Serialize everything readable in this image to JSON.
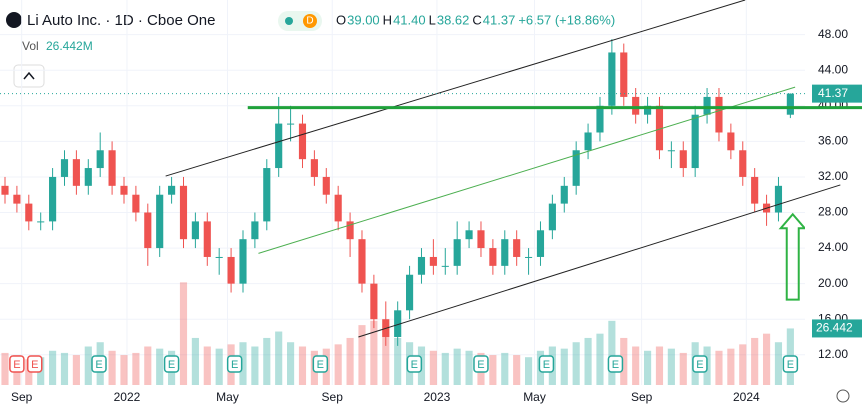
{
  "header": {
    "title": "Li Auto Inc. · 1D · Cboe One",
    "badge": "D",
    "ohlc": [
      {
        "key": "O",
        "value": "39.00"
      },
      {
        "key": "H",
        "value": "41.40"
      },
      {
        "key": "L",
        "value": "38.62"
      },
      {
        "key": "C",
        "value": "41.37"
      }
    ],
    "change": "+6.57 (+18.86%)",
    "vol_label": "Vol",
    "vol_value": "26.442M"
  },
  "chart_data": {
    "type": "candlestick",
    "up_color": "#26a69a",
    "down_color": "#ef5350",
    "xlim": [
      -0.42,
      67.23
    ],
    "ylim": [
      8.6,
      51.9
    ],
    "y2lim": [
      0,
      180
    ],
    "xticks": [
      {
        "value": 1.4,
        "label": "Sep"
      },
      {
        "value": 10.25,
        "label": "2022"
      },
      {
        "value": 18.7,
        "label": "May"
      },
      {
        "value": 27.5,
        "label": "Sep"
      },
      {
        "value": 36.3,
        "label": "2023"
      },
      {
        "value": 44.5,
        "label": "May"
      },
      {
        "value": 53.5,
        "label": "Sep"
      },
      {
        "value": 62.3,
        "label": "2024"
      }
    ],
    "yticks": [
      {
        "value": 12,
        "label": "12.00"
      },
      {
        "value": 16,
        "label": "16.00"
      },
      {
        "value": 20,
        "label": "20.00"
      },
      {
        "value": 24,
        "label": "24.00"
      },
      {
        "value": 28,
        "label": "28.00"
      },
      {
        "value": 32,
        "label": "32.00"
      },
      {
        "value": 36,
        "label": "36.00"
      },
      {
        "value": 40,
        "label": "40.00"
      },
      {
        "value": 44,
        "label": "44.00"
      },
      {
        "value": 48,
        "label": "48.00"
      }
    ],
    "open": [
      31,
      30,
      29,
      27,
      27,
      32,
      34,
      31,
      33,
      35,
      31,
      30,
      28,
      24,
      30,
      31,
      25,
      27,
      23,
      23,
      20,
      25,
      27,
      33,
      38,
      38,
      34,
      32,
      30,
      27,
      25,
      20,
      16,
      14,
      17,
      21,
      23,
      22,
      22,
      25,
      26,
      24,
      22,
      25,
      23,
      23,
      26,
      29,
      31,
      35,
      37,
      40,
      46,
      41,
      39,
      40,
      35,
      35,
      33,
      39,
      41,
      37,
      35,
      32,
      29,
      28,
      39
    ],
    "high": [
      32,
      31,
      30,
      28,
      33,
      35,
      35,
      34,
      37,
      36,
      32,
      31,
      29,
      31,
      32,
      32,
      28,
      28,
      24,
      24,
      26,
      28,
      34,
      41,
      40,
      39,
      35,
      33,
      31,
      28,
      26,
      21,
      18,
      18,
      22,
      24,
      25,
      24,
      27,
      27,
      27,
      25,
      26,
      26,
      24,
      27,
      30,
      32,
      36,
      38,
      41,
      47.5,
      47,
      42,
      41,
      41,
      36,
      36,
      40,
      42,
      42,
      38,
      36,
      33,
      30,
      32,
      41.4
    ],
    "low": [
      29,
      28,
      26,
      26,
      26,
      31,
      30,
      30,
      32,
      30,
      29,
      27,
      22,
      23,
      29,
      24,
      24,
      22,
      21,
      19,
      19,
      24,
      26,
      32,
      36,
      33,
      31,
      29,
      26,
      23,
      19,
      15,
      13,
      13,
      16,
      20,
      21,
      21,
      21,
      24,
      23,
      21,
      21,
      22,
      21,
      22,
      25,
      28,
      30,
      34,
      36,
      39,
      40,
      38,
      38,
      34,
      33,
      32,
      32,
      38,
      36,
      34,
      31,
      28,
      26.5,
      27,
      38.62
    ],
    "close": [
      30,
      29,
      27,
      27,
      32,
      34,
      31,
      33,
      35,
      31,
      30,
      28,
      24,
      30,
      31,
      25,
      27,
      23,
      23,
      20,
      25,
      27,
      33,
      38,
      38,
      34,
      32,
      30,
      27,
      25,
      20,
      16,
      14,
      17,
      21,
      23,
      22,
      22,
      25,
      26,
      24,
      22,
      25,
      23,
      23,
      26,
      29,
      31,
      35,
      37,
      40,
      46,
      41,
      39,
      40,
      35,
      35,
      33,
      39,
      41,
      37,
      35,
      32,
      29,
      28,
      31,
      41.37
    ],
    "volume": [
      15,
      14,
      12,
      13,
      16,
      15,
      14,
      18,
      20,
      16,
      14,
      15,
      18,
      17,
      16,
      48,
      22,
      18,
      17,
      19,
      20,
      18,
      22,
      25,
      20,
      18,
      16,
      17,
      19,
      22,
      28,
      30,
      26,
      22,
      20,
      18,
      16,
      15,
      17,
      16,
      15,
      14,
      15,
      14,
      13,
      16,
      18,
      17,
      20,
      22,
      24,
      30,
      22,
      18,
      16,
      18,
      17,
      15,
      20,
      18,
      16,
      17,
      19,
      22,
      24,
      20,
      26.442
    ],
    "events": [
      {
        "at": 1.0,
        "label": "E",
        "color": "#ef5350"
      },
      {
        "at": 2.5,
        "label": "E",
        "color": "#ef5350"
      },
      {
        "at": 7.9,
        "label": "E",
        "color": "#26a69a"
      },
      {
        "at": 14.0,
        "label": "E",
        "color": "#26a69a"
      },
      {
        "at": 19.3,
        "label": "E",
        "color": "#26a69a"
      },
      {
        "at": 26.5,
        "label": "E",
        "color": "#26a69a"
      },
      {
        "at": 34.4,
        "label": "E",
        "color": "#26a69a"
      },
      {
        "at": 40.0,
        "label": "E",
        "color": "#26a69a"
      },
      {
        "at": 45.5,
        "label": "E",
        "color": "#26a69a"
      },
      {
        "at": 51.3,
        "label": "E",
        "color": "#26a69a"
      },
      {
        "at": 58.4,
        "label": "E",
        "color": "#26a69a"
      },
      {
        "at": 66.0,
        "label": "E",
        "color": "#26a69a"
      }
    ],
    "drawings": [
      {
        "kind": "line",
        "color": "#222222",
        "points": [
          [
            13.5,
            32.1
          ],
          [
            62.2,
            51.9
          ]
        ]
      },
      {
        "kind": "line",
        "color": "#222222",
        "points": [
          [
            29.7,
            14.0
          ],
          [
            70.2,
            31.1
          ]
        ]
      },
      {
        "kind": "line",
        "color": "#4caf50",
        "points": [
          [
            21.3,
            23.4
          ],
          [
            66.4,
            42.1
          ]
        ]
      },
      {
        "kind": "hline",
        "color": "#1fa13a",
        "points": [
          [
            20.4,
            39.8
          ],
          [
            70.2,
            39.8
          ]
        ]
      },
      {
        "kind": "arrow",
        "color": "#2fb344",
        "points": [
          [
            66.2,
            18.2
          ],
          [
            66.2,
            27.8
          ]
        ]
      }
    ]
  }
}
